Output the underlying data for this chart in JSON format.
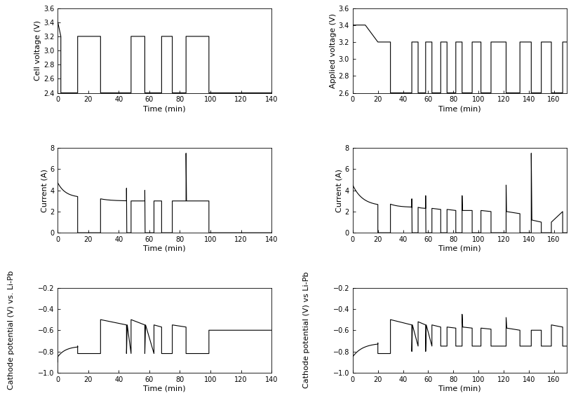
{
  "left_voltage": {
    "ylabel": "Cell voltage (V)",
    "xlabel": "Time (min)",
    "xlim": [
      0,
      140
    ],
    "ylim": [
      2.4,
      3.6
    ],
    "yticks": [
      2.4,
      2.6,
      2.8,
      3.0,
      3.2,
      3.4,
      3.6
    ],
    "xticks": [
      0,
      20,
      40,
      60,
      80,
      100,
      120,
      140
    ],
    "x": [
      0,
      2,
      2,
      13,
      13,
      28,
      28,
      48,
      48,
      57,
      57,
      68,
      68,
      75,
      75,
      84,
      84,
      99,
      99,
      140
    ],
    "y": [
      3.4,
      3.2,
      2.4,
      2.4,
      3.2,
      3.2,
      2.4,
      2.4,
      3.2,
      3.2,
      2.4,
      2.4,
      3.2,
      3.2,
      2.4,
      2.4,
      3.2,
      3.2,
      2.4,
      2.4
    ]
  },
  "right_voltage": {
    "ylabel": "Applied voltage (V)",
    "xlabel": "Time (min)",
    "xlim": [
      0,
      170
    ],
    "ylim": [
      2.6,
      3.6
    ],
    "yticks": [
      2.6,
      2.8,
      3.0,
      3.2,
      3.4,
      3.6
    ],
    "xticks": [
      0,
      20,
      40,
      60,
      80,
      100,
      120,
      140,
      160
    ],
    "x": [
      0,
      10,
      10,
      20,
      20,
      30,
      30,
      47,
      47,
      52,
      52,
      58,
      58,
      63,
      63,
      70,
      70,
      75,
      75,
      82,
      82,
      87,
      87,
      95,
      95,
      102,
      102,
      110,
      110,
      122,
      122,
      133,
      133,
      142,
      142,
      150,
      150,
      158,
      158,
      167,
      167,
      170
    ],
    "y": [
      3.4,
      3.4,
      2.6,
      2.6,
      3.2,
      3.2,
      2.6,
      2.6,
      3.2,
      3.2,
      2.6,
      2.6,
      3.2,
      3.2,
      2.6,
      2.6,
      3.2,
      3.2,
      2.6,
      2.6,
      3.2,
      3.2,
      2.6,
      2.6,
      3.2,
      3.2,
      2.6,
      2.6,
      3.2,
      3.2,
      2.6,
      2.6,
      3.2,
      3.2,
      2.6,
      2.6,
      3.2,
      3.2,
      2.6,
      2.6,
      3.2,
      3.2
    ]
  },
  "linecolor": "#000000",
  "linewidth": 0.8,
  "background": "#ffffff",
  "tick_labelsize": 7,
  "axis_labelsize": 8
}
